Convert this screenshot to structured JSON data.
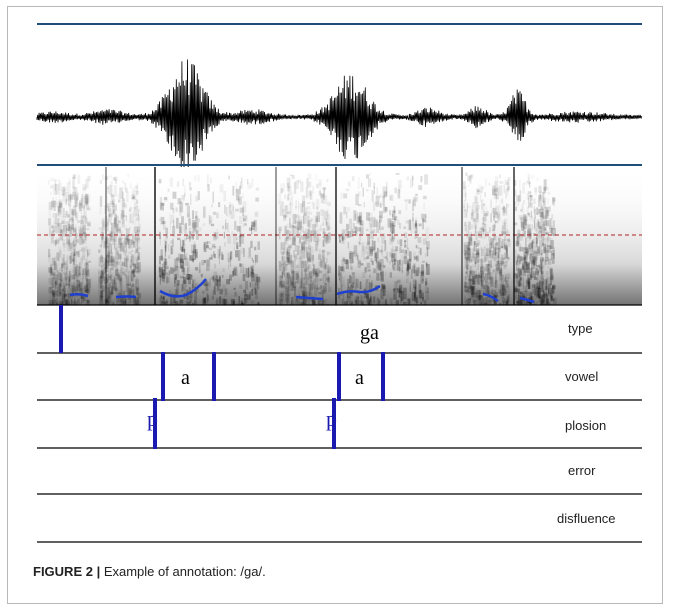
{
  "tiers": [
    {
      "name": "type",
      "labels": [
        "ga"
      ]
    },
    {
      "name": "vowel",
      "labels": [
        "a",
        "a"
      ]
    },
    {
      "name": "plosion",
      "labels": [
        "p",
        "p"
      ]
    },
    {
      "name": "error",
      "labels": []
    },
    {
      "name": "disfluence",
      "labels": []
    }
  ],
  "caption": {
    "prefix": "FIGURE 2 |",
    "text": " Example of annotation: /ga/."
  },
  "colors": {
    "tier_mark": "#1a1ab0",
    "pitch": "#1f3fd0",
    "waveform": "#000000",
    "border_line": "#1f4e79",
    "dashed_line": "#b02020"
  }
}
